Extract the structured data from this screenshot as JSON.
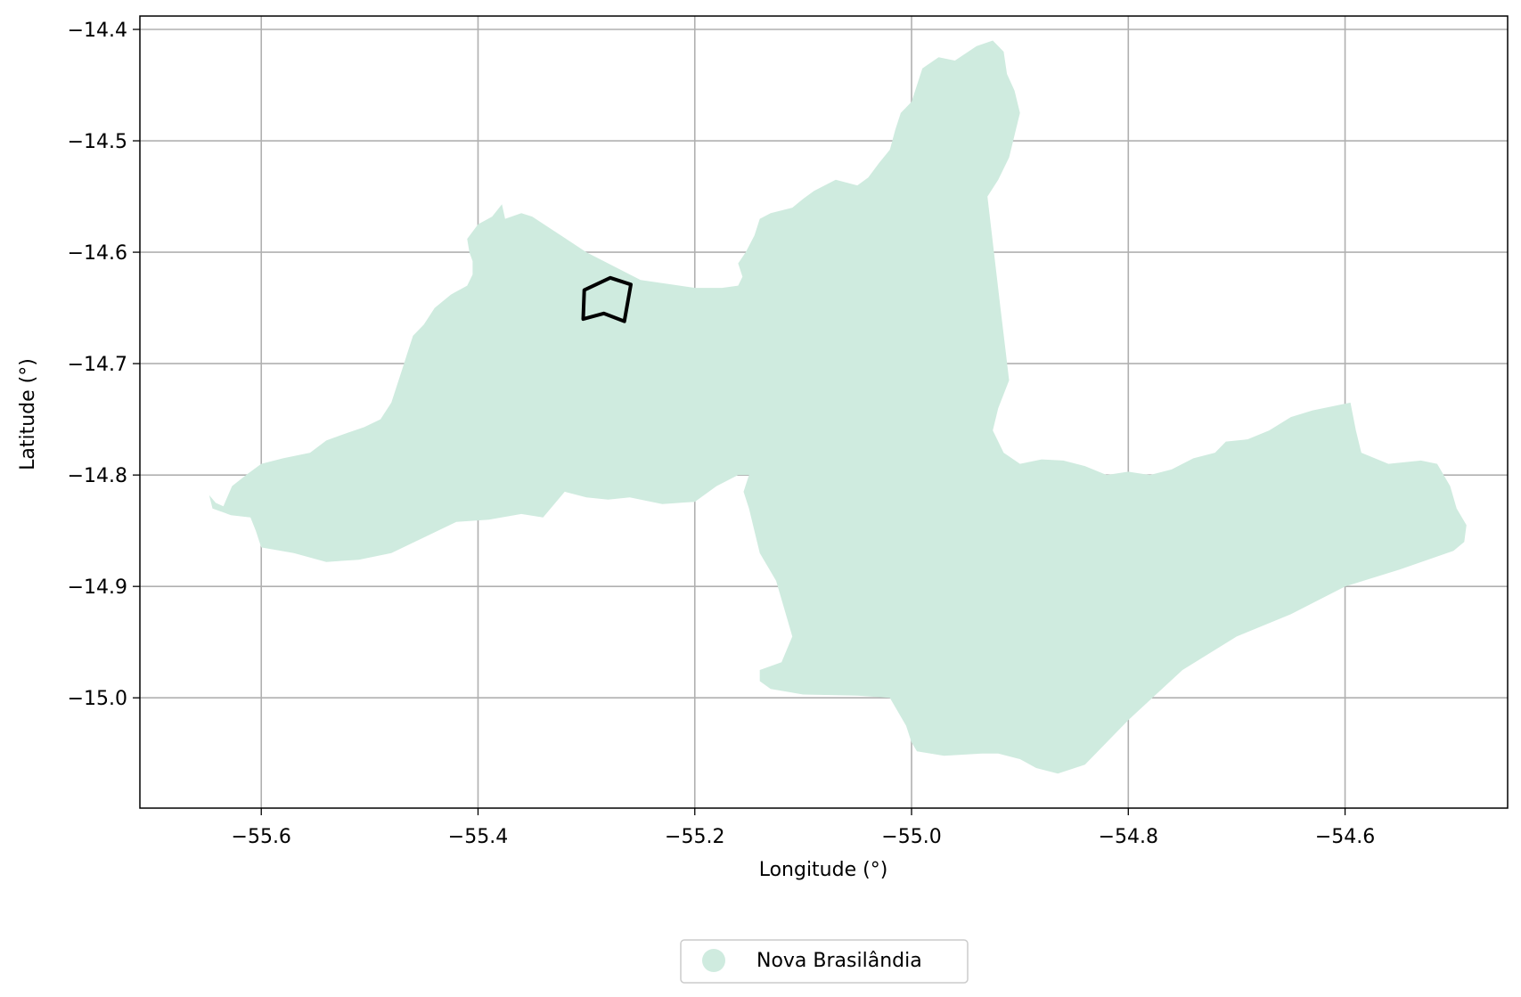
{
  "chart_data": {
    "type": "map",
    "xlabel": "Longitude (°)",
    "ylabel": "Latitude (°)",
    "xlim": [
      -55.712,
      -54.45
    ],
    "ylim": [
      -15.099,
      -14.388
    ],
    "grid": true,
    "x_ticks": [
      {
        "value": -55.6,
        "label": "−55.6"
      },
      {
        "value": -55.4,
        "label": "−55.4"
      },
      {
        "value": -55.2,
        "label": "−55.2"
      },
      {
        "value": -55.0,
        "label": "−55.0"
      },
      {
        "value": -54.8,
        "label": "−54.8"
      },
      {
        "value": -54.6,
        "label": "−54.6"
      }
    ],
    "y_ticks": [
      {
        "value": -14.4,
        "label": "−14.4"
      },
      {
        "value": -14.5,
        "label": "−14.5"
      },
      {
        "value": -14.6,
        "label": "−14.6"
      },
      {
        "value": -14.7,
        "label": "−14.7"
      },
      {
        "value": -14.8,
        "label": "−14.8"
      },
      {
        "value": -14.9,
        "label": "−14.9"
      },
      {
        "value": -15.0,
        "label": "−15.0"
      }
    ],
    "legend": {
      "placement": "bottom-center",
      "entries": [
        {
          "label": "Nova Brasilândia",
          "color": "#cfebdf"
        }
      ]
    },
    "fill_color": "#cfebdf",
    "outline_color": "#000000",
    "region": [
      [
        -55.648,
        -14.818
      ],
      [
        -55.642,
        -14.825
      ],
      [
        -55.635,
        -14.828
      ],
      [
        -55.627,
        -14.81
      ],
      [
        -55.614,
        -14.8
      ],
      [
        -55.6,
        -14.79
      ],
      [
        -55.58,
        -14.785
      ],
      [
        -55.555,
        -14.78
      ],
      [
        -55.54,
        -14.769
      ],
      [
        -55.52,
        -14.762
      ],
      [
        -55.505,
        -14.757
      ],
      [
        -55.49,
        -14.75
      ],
      [
        -55.48,
        -14.735
      ],
      [
        -55.475,
        -14.72
      ],
      [
        -55.47,
        -14.705
      ],
      [
        -55.465,
        -14.69
      ],
      [
        -55.46,
        -14.675
      ],
      [
        -55.45,
        -14.665
      ],
      [
        -55.44,
        -14.65
      ],
      [
        -55.425,
        -14.638
      ],
      [
        -55.41,
        -14.63
      ],
      [
        -55.405,
        -14.62
      ],
      [
        -55.405,
        -14.608
      ],
      [
        -55.408,
        -14.6
      ],
      [
        -55.41,
        -14.588
      ],
      [
        -55.4,
        -14.575
      ],
      [
        -55.387,
        -14.568
      ],
      [
        -55.378,
        -14.557
      ],
      [
        -55.375,
        -14.57
      ],
      [
        -55.36,
        -14.565
      ],
      [
        -55.35,
        -14.568
      ],
      [
        -55.3,
        -14.6
      ],
      [
        -55.25,
        -14.625
      ],
      [
        -55.2,
        -14.632
      ],
      [
        -55.175,
        -14.632
      ],
      [
        -55.16,
        -14.63
      ],
      [
        -55.156,
        -14.622
      ],
      [
        -55.16,
        -14.61
      ],
      [
        -55.153,
        -14.6
      ],
      [
        -55.145,
        -14.585
      ],
      [
        -55.14,
        -14.57
      ],
      [
        -55.13,
        -14.565
      ],
      [
        -55.11,
        -14.56
      ],
      [
        -55.1,
        -14.552
      ],
      [
        -55.09,
        -14.545
      ],
      [
        -55.07,
        -14.535
      ],
      [
        -55.05,
        -14.54
      ],
      [
        -55.04,
        -14.533
      ],
      [
        -55.03,
        -14.52
      ],
      [
        -55.02,
        -14.508
      ],
      [
        -55.015,
        -14.49
      ],
      [
        -55.01,
        -14.475
      ],
      [
        -55.0,
        -14.465
      ],
      [
        -54.995,
        -14.45
      ],
      [
        -54.99,
        -14.435
      ],
      [
        -54.975,
        -14.425
      ],
      [
        -54.96,
        -14.428
      ],
      [
        -54.94,
        -14.415
      ],
      [
        -54.925,
        -14.41
      ],
      [
        -54.915,
        -14.42
      ],
      [
        -54.912,
        -14.44
      ],
      [
        -54.905,
        -14.455
      ],
      [
        -54.9,
        -14.475
      ],
      [
        -54.905,
        -14.495
      ],
      [
        -54.91,
        -14.515
      ],
      [
        -54.92,
        -14.535
      ],
      [
        -54.93,
        -14.55
      ],
      [
        -54.918,
        -14.65
      ],
      [
        -54.913,
        -14.69
      ],
      [
        -54.91,
        -14.715
      ],
      [
        -54.92,
        -14.74
      ],
      [
        -54.925,
        -14.76
      ],
      [
        -54.915,
        -14.78
      ],
      [
        -54.9,
        -14.79
      ],
      [
        -54.88,
        -14.786
      ],
      [
        -54.86,
        -14.787
      ],
      [
        -54.84,
        -14.792
      ],
      [
        -54.82,
        -14.8
      ],
      [
        -54.8,
        -14.797
      ],
      [
        -54.78,
        -14.8
      ],
      [
        -54.76,
        -14.795
      ],
      [
        -54.74,
        -14.785
      ],
      [
        -54.72,
        -14.78
      ],
      [
        -54.71,
        -14.77
      ],
      [
        -54.69,
        -14.768
      ],
      [
        -54.67,
        -14.76
      ],
      [
        -54.65,
        -14.748
      ],
      [
        -54.63,
        -14.742
      ],
      [
        -54.61,
        -14.738
      ],
      [
        -54.595,
        -14.735
      ],
      [
        -54.59,
        -14.76
      ],
      [
        -54.585,
        -14.78
      ],
      [
        -54.56,
        -14.79
      ],
      [
        -54.53,
        -14.787
      ],
      [
        -54.515,
        -14.79
      ],
      [
        -54.503,
        -14.81
      ],
      [
        -54.497,
        -14.83
      ],
      [
        -54.488,
        -14.845
      ],
      [
        -54.49,
        -14.86
      ],
      [
        -54.5,
        -14.868
      ],
      [
        -54.55,
        -14.885
      ],
      [
        -54.6,
        -14.9
      ],
      [
        -54.65,
        -14.925
      ],
      [
        -54.7,
        -14.945
      ],
      [
        -54.75,
        -14.975
      ],
      [
        -54.8,
        -15.02
      ],
      [
        -54.84,
        -15.06
      ],
      [
        -54.865,
        -15.068
      ],
      [
        -54.885,
        -15.063
      ],
      [
        -54.9,
        -15.055
      ],
      [
        -54.92,
        -15.05
      ],
      [
        -54.935,
        -15.05
      ],
      [
        -54.97,
        -15.052
      ],
      [
        -54.995,
        -15.048
      ],
      [
        -55.0,
        -15.04
      ],
      [
        -55.005,
        -15.025
      ],
      [
        -55.02,
        -15.0
      ],
      [
        -55.05,
        -14.998
      ],
      [
        -55.1,
        -14.997
      ],
      [
        -55.13,
        -14.992
      ],
      [
        -55.14,
        -14.985
      ],
      [
        -55.14,
        -14.975
      ],
      [
        -55.12,
        -14.968
      ],
      [
        -55.11,
        -14.945
      ],
      [
        -55.115,
        -14.928
      ],
      [
        -55.125,
        -14.895
      ],
      [
        -55.14,
        -14.87
      ],
      [
        -55.15,
        -14.83
      ],
      [
        -55.155,
        -14.815
      ],
      [
        -55.15,
        -14.8
      ],
      [
        -55.16,
        -14.8
      ],
      [
        -55.18,
        -14.81
      ],
      [
        -55.2,
        -14.824
      ],
      [
        -55.23,
        -14.826
      ],
      [
        -55.26,
        -14.82
      ],
      [
        -55.28,
        -14.822
      ],
      [
        -55.3,
        -14.82
      ],
      [
        -55.32,
        -14.815
      ],
      [
        -55.34,
        -14.838
      ],
      [
        -55.36,
        -14.835
      ],
      [
        -55.39,
        -14.84
      ],
      [
        -55.42,
        -14.842
      ],
      [
        -55.45,
        -14.856
      ],
      [
        -55.48,
        -14.87
      ],
      [
        -55.51,
        -14.876
      ],
      [
        -55.54,
        -14.878
      ],
      [
        -55.57,
        -14.87
      ],
      [
        -55.6,
        -14.865
      ],
      [
        -55.605,
        -14.85
      ],
      [
        -55.61,
        -14.838
      ],
      [
        -55.628,
        -14.836
      ],
      [
        -55.645,
        -14.83
      ]
    ],
    "outline": [
      [
        -55.302,
        -14.634
      ],
      [
        -55.278,
        -14.623
      ],
      [
        -55.259,
        -14.629
      ],
      [
        -55.265,
        -14.662
      ],
      [
        -55.284,
        -14.655
      ],
      [
        -55.303,
        -14.66
      ]
    ]
  }
}
